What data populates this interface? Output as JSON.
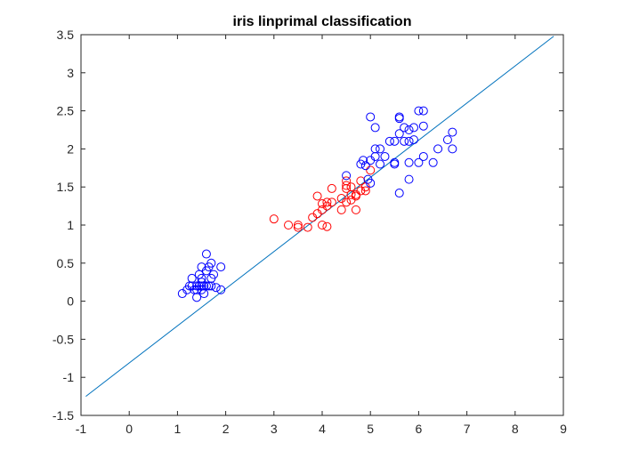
{
  "chart_data": {
    "type": "scatter",
    "title": "iris linprimal classification",
    "xlabel": "",
    "ylabel": "",
    "xlim": [
      -1,
      9
    ],
    "ylim": [
      -1.5,
      3.5
    ],
    "grid": false,
    "legend": false,
    "xticks": [
      -1,
      0,
      1,
      2,
      3,
      4,
      5,
      6,
      7,
      8,
      9
    ],
    "xtick_labels": [
      "-1",
      "0",
      "1",
      "2",
      "3",
      "4",
      "5",
      "6",
      "7",
      "8",
      "9"
    ],
    "yticks": [
      -1.5,
      -1,
      -0.5,
      0,
      0.5,
      1,
      1.5,
      2,
      2.5,
      3,
      3.5
    ],
    "ytick_labels": [
      "-1.5",
      "-1",
      "-0.5",
      "0",
      "0.5",
      "1",
      "1.5",
      "2",
      "2.5",
      "3",
      "3.5"
    ],
    "series": [
      {
        "color": "#0000ff",
        "marker": "circle",
        "points": [
          [
            1.1,
            0.1
          ],
          [
            1.2,
            0.15
          ],
          [
            1.3,
            0.3
          ],
          [
            1.3,
            0.2
          ],
          [
            1.35,
            0.15
          ],
          [
            1.4,
            0.2
          ],
          [
            1.4,
            0.05
          ],
          [
            1.4,
            0.15
          ],
          [
            1.45,
            0.2
          ],
          [
            1.5,
            0.2
          ],
          [
            1.5,
            0.25
          ],
          [
            1.5,
            0.15
          ],
          [
            1.5,
            0.3
          ],
          [
            1.5,
            0.45
          ],
          [
            1.55,
            0.2
          ],
          [
            1.55,
            0.1
          ],
          [
            1.6,
            0.2
          ],
          [
            1.6,
            0.4
          ],
          [
            1.6,
            0.62
          ],
          [
            1.65,
            0.2
          ],
          [
            1.65,
            0.45
          ],
          [
            1.7,
            0.3
          ],
          [
            1.7,
            0.5
          ],
          [
            1.7,
            0.2
          ],
          [
            1.75,
            0.35
          ],
          [
            1.8,
            0.18
          ],
          [
            1.9,
            0.45
          ],
          [
            1.9,
            0.15
          ],
          [
            1.25,
            0.2
          ],
          [
            1.45,
            0.35
          ]
        ]
      },
      {
        "color": "#ff0000",
        "marker": "circle",
        "points": [
          [
            3.0,
            1.08
          ],
          [
            3.3,
            1.0
          ],
          [
            3.5,
            1.0
          ],
          [
            3.5,
            0.97
          ],
          [
            3.7,
            0.97
          ],
          [
            3.8,
            1.1
          ],
          [
            3.9,
            1.15
          ],
          [
            3.9,
            1.38
          ],
          [
            4.0,
            1.0
          ],
          [
            4.0,
            1.28
          ],
          [
            4.0,
            1.2
          ],
          [
            4.1,
            1.3
          ],
          [
            4.1,
            1.25
          ],
          [
            4.1,
            0.98
          ],
          [
            4.2,
            1.48
          ],
          [
            4.2,
            1.3
          ],
          [
            4.4,
            1.35
          ],
          [
            4.4,
            1.2
          ],
          [
            4.5,
            1.48
          ],
          [
            4.5,
            1.52
          ],
          [
            4.5,
            1.58
          ],
          [
            4.5,
            1.3
          ],
          [
            4.6,
            1.4
          ],
          [
            4.6,
            1.5
          ],
          [
            4.6,
            1.33
          ],
          [
            4.7,
            1.4
          ],
          [
            4.7,
            1.2
          ],
          [
            4.7,
            1.38
          ],
          [
            4.8,
            1.58
          ],
          [
            4.8,
            1.45
          ],
          [
            4.9,
            1.45
          ],
          [
            4.9,
            1.5
          ],
          [
            5.0,
            1.72
          ]
        ]
      },
      {
        "color": "#0000ff",
        "marker": "circle",
        "points": [
          [
            4.5,
            1.65
          ],
          [
            4.8,
            1.8
          ],
          [
            4.85,
            1.85
          ],
          [
            4.9,
            1.78
          ],
          [
            5.0,
            1.55
          ],
          [
            5.0,
            1.85
          ],
          [
            5.0,
            2.42
          ],
          [
            5.1,
            2.0
          ],
          [
            5.1,
            2.28
          ],
          [
            5.1,
            1.9
          ],
          [
            5.2,
            1.8
          ],
          [
            5.2,
            2.0
          ],
          [
            5.3,
            1.9
          ],
          [
            5.5,
            2.1
          ],
          [
            5.5,
            1.82
          ],
          [
            5.5,
            1.8
          ],
          [
            5.6,
            2.4
          ],
          [
            5.6,
            2.2
          ],
          [
            5.6,
            2.42
          ],
          [
            5.6,
            1.42
          ],
          [
            5.7,
            2.1
          ],
          [
            5.8,
            2.25
          ],
          [
            5.8,
            2.1
          ],
          [
            5.8,
            1.82
          ],
          [
            5.8,
            1.6
          ],
          [
            5.9,
            2.28
          ],
          [
            5.9,
            2.12
          ],
          [
            6.0,
            2.5
          ],
          [
            6.0,
            1.82
          ],
          [
            6.1,
            2.5
          ],
          [
            6.1,
            1.9
          ],
          [
            6.1,
            2.3
          ],
          [
            6.3,
            1.82
          ],
          [
            6.4,
            2.0
          ],
          [
            6.6,
            2.12
          ],
          [
            6.7,
            2.0
          ],
          [
            6.7,
            2.22
          ],
          [
            5.7,
            2.28
          ],
          [
            5.4,
            2.1
          ],
          [
            4.95,
            1.6
          ]
        ]
      }
    ],
    "line": {
      "color": "#0072bd",
      "points": [
        [
          -0.9,
          -1.25
        ],
        [
          8.8,
          3.48
        ]
      ]
    }
  }
}
